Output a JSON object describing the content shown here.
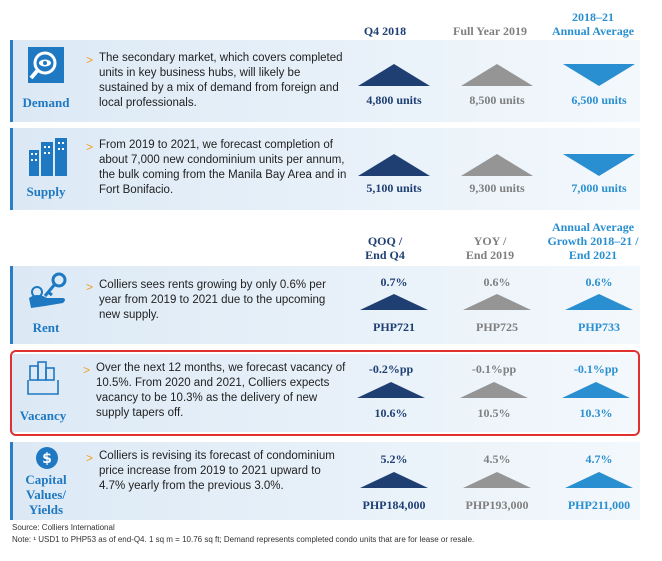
{
  "header1": {
    "col1": "Q4 2018",
    "col2": "Full Year 2019",
    "col3_line1": "2018–21",
    "col3_line2": "Annual Average"
  },
  "header2": {
    "col1_line1": "QOQ /",
    "col1_line2": "End Q4",
    "col2_line1": "YOY /",
    "col2_line2": "End 2019",
    "col3_line1": "Annual Average",
    "col3_line2": "Growth 2018–21 /",
    "col3_line3": "End 2021"
  },
  "chevron": ">",
  "rows": {
    "demand": {
      "label": "Demand",
      "icon": "magnifier-eye-icon",
      "text": "The secondary market, which covers completed units in key business hubs, will likely be sustained by a mix of demand from foreign and local professionals.",
      "v1": "4,800 units",
      "v2": "8,500 units",
      "v3": "6,500 units"
    },
    "supply": {
      "label": "Supply",
      "icon": "buildings-icon",
      "text": "From 2019 to 2021, we forecast completion of about 7,000 new condominium units per annum, the bulk coming from the Manila Bay Area and in Fort Bonifacio.",
      "v1": "5,100 units",
      "v2": "9,300 units",
      "v3": "7,000 units"
    },
    "rent": {
      "label": "Rent",
      "icon": "hand-key-icon",
      "text": "Colliers sees rents growing by only 0.6% per year from 2019 to 2021 due to the upcoming new supply.",
      "c1": "0.7%",
      "c2": "0.6%",
      "c3": "0.6%",
      "v1": "PHP721",
      "v2": "PHP725",
      "v3": "PHP733"
    },
    "vacancy": {
      "label": "Vacancy",
      "icon": "vacancy-blocks-icon",
      "text": "Over the next  12 months, we forecast vacancy of 10.5%. From 2020 and 2021, Colliers expects vacancy to be 10.3% as the delivery of new supply tapers off.",
      "c1": "-0.2%pp",
      "c2": "-0.1%pp",
      "c3": "-0.1%pp",
      "v1": "10.6%",
      "v2": "10.5%",
      "v3": "10.3%"
    },
    "capital": {
      "label1": "Capital",
      "label2": "Values/",
      "label3": "Yields",
      "icon": "dollar-coin-icon",
      "text": "Colliers is revising its forecast of condominium price increase from 2019 to 2021 upward to 4.7% yearly from the previous 3.0%.",
      "c1": "5.2%",
      "c2": "4.5%",
      "c3": "4.7%",
      "v1": "PHP184,000",
      "v2": "PHP193,000",
      "v3": "PHP211,000"
    }
  },
  "footer": {
    "source": "Source: Colliers International",
    "note": "Note: ¹ USD1 to PHP53 as of end-Q4. 1 sq m = 10.76 sq ft; Demand represents completed condo units that are for lease or resale."
  },
  "colors": {
    "navy": "#1f3f73",
    "grey": "#959595",
    "blue": "#2a8fd0",
    "highlight": "#e03030"
  }
}
